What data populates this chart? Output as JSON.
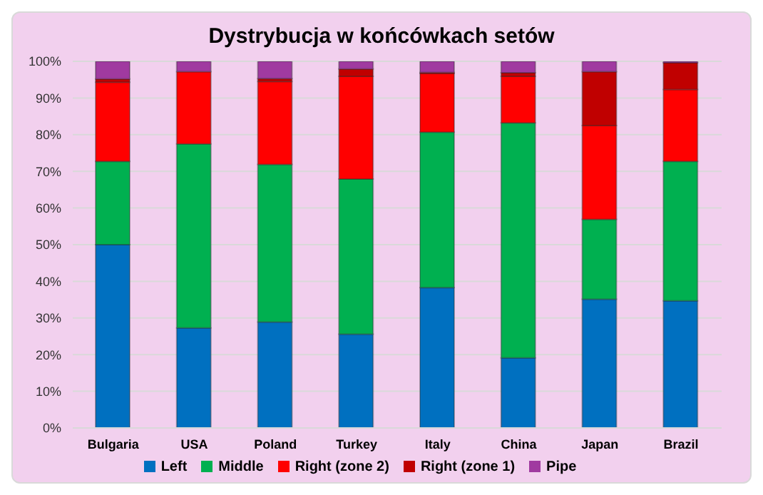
{
  "chart_data": {
    "type": "bar",
    "title": "Dystrybucja w końcówkach setów",
    "stacked": true,
    "grid": "y",
    "legend": "bottom",
    "categories": [
      "Bulgaria",
      "USA",
      "Poland",
      "Turkey",
      "Italy",
      "China",
      "Japan",
      "Brazil"
    ],
    "ylim": [
      0,
      100
    ],
    "yticks": [
      {
        "value": 0,
        "label": "0%"
      },
      {
        "value": 10,
        "label": "10%"
      },
      {
        "value": 20,
        "label": "20%"
      },
      {
        "value": 30,
        "label": "30%"
      },
      {
        "value": 40,
        "label": "40%"
      },
      {
        "value": 50,
        "label": "50%"
      },
      {
        "value": 60,
        "label": "60%"
      },
      {
        "value": 70,
        "label": "70%"
      },
      {
        "value": 80,
        "label": "80%"
      },
      {
        "value": 90,
        "label": "90%"
      },
      {
        "value": 100,
        "label": "100%"
      }
    ],
    "series": [
      {
        "name": "Left",
        "color": "#0070c0",
        "values": [
          50,
          27.3,
          28.9,
          25.6,
          38.3,
          19.1,
          35.1,
          34.7
        ]
      },
      {
        "name": "Middle",
        "color": "#00b050",
        "values": [
          22.7,
          50.2,
          43,
          42.3,
          42.4,
          64.1,
          21.8,
          38
        ]
      },
      {
        "name": "Right (zone 2)",
        "color": "#ff0000",
        "values": [
          21.6,
          19.7,
          22.6,
          28,
          16,
          12.7,
          25.6,
          19.6
        ]
      },
      {
        "name": "Right (zone 1)",
        "color": "#c00000",
        "values": [
          0.9,
          null,
          0.8,
          2,
          0.3,
          1,
          14.7,
          7.3
        ]
      },
      {
        "name": "Pipe",
        "color": "#a03aa0",
        "values": [
          4.8,
          2.8,
          4.7,
          2.1,
          3,
          3.1,
          2.8,
          0.4
        ]
      }
    ]
  }
}
